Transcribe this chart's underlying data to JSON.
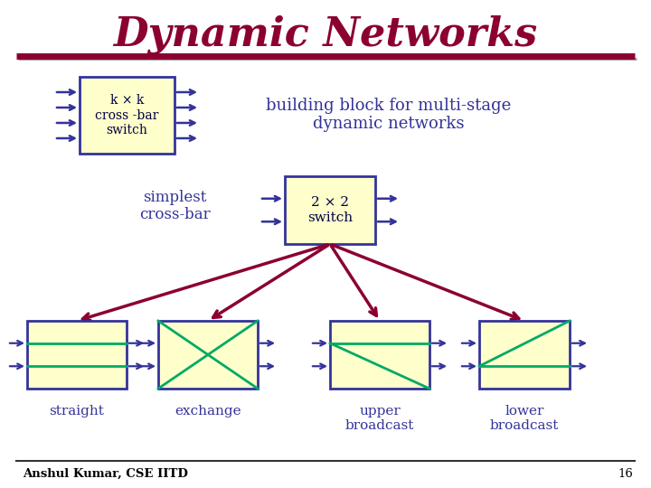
{
  "title": "Dynamic Networks",
  "title_color": "#8B0030",
  "title_fontsize": 32,
  "bg_color": "#FFFFFF",
  "box_fill": "#FFFFCC",
  "box_edge_color": "#333399",
  "arrow_color": "#333399",
  "dark_red_arrow": "#8B0030",
  "green_line": "#00AA66",
  "footer_text": "Anshul Kumar, CSE IITD",
  "footer_page": "16",
  "kk_label": "k × k\ncross -bar\nswitch",
  "building_block_text": "building block for multi-stage\ndynamic networks",
  "simplest_text": "simplest\ncross-bar",
  "switch_22_text": "2 × 2\nswitch",
  "bottom_labels": [
    "straight",
    "exchange",
    "upper\nbroadcast",
    "lower\nbroadcast"
  ],
  "title_bar_color": "#8B0030",
  "title_bar_shadow": "#999999"
}
